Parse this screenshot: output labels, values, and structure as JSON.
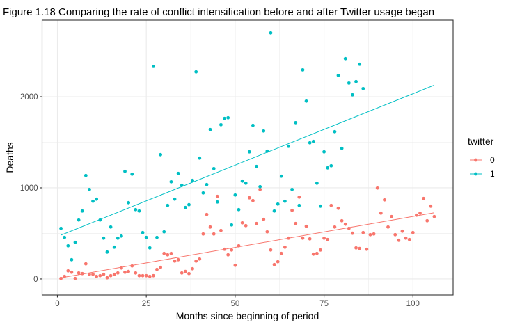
{
  "chart_data": {
    "type": "scatter",
    "title": "Figure 1.18 Comparing the rate of conflict intensification  before and after Twitter usage began",
    "xlabel": "Months since beginning of period",
    "ylabel": "Deaths",
    "xlim": [
      -4.3,
      111.3
    ],
    "ylim": [
      -176,
      2840
    ],
    "xticks": [
      0,
      25,
      50,
      75,
      100
    ],
    "xtick_labels": [
      "0",
      "25",
      "50",
      "75",
      "100"
    ],
    "yticks": [
      0,
      1000,
      2000
    ],
    "ytick_labels": [
      "0",
      "1000",
      "2000"
    ],
    "x_minor_gridlines": [
      12.5,
      37.5,
      62.5,
      87.5
    ],
    "y_minor_gridlines": [
      500,
      1500,
      2500
    ],
    "grid": true,
    "legend": {
      "title": "twitter",
      "position": "right"
    },
    "series": [
      {
        "name": "0",
        "color": "#F8766D",
        "points": [
          [
            1,
            5
          ],
          [
            2,
            28
          ],
          [
            3,
            89
          ],
          [
            4,
            74
          ],
          [
            5,
            5
          ],
          [
            6,
            66
          ],
          [
            7,
            59
          ],
          [
            8,
            166
          ],
          [
            9,
            51
          ],
          [
            10,
            51
          ],
          [
            11,
            28
          ],
          [
            12,
            36
          ],
          [
            13,
            51
          ],
          [
            14,
            13
          ],
          [
            15,
            36
          ],
          [
            16,
            51
          ],
          [
            17,
            66
          ],
          [
            18,
            120
          ],
          [
            19,
            74
          ],
          [
            20,
            82
          ],
          [
            21,
            143
          ],
          [
            22,
            66
          ],
          [
            23,
            36
          ],
          [
            24,
            36
          ],
          [
            25,
            36
          ],
          [
            26,
            28
          ],
          [
            27,
            36
          ],
          [
            28,
            104
          ],
          [
            29,
            127
          ],
          [
            30,
            280
          ],
          [
            31,
            265
          ],
          [
            32,
            280
          ],
          [
            33,
            196
          ],
          [
            34,
            211
          ],
          [
            35,
            66
          ],
          [
            36,
            82
          ],
          [
            37,
            59
          ],
          [
            38,
            112
          ],
          [
            39,
            196
          ],
          [
            40,
            219
          ],
          [
            41,
            494
          ],
          [
            42,
            708
          ],
          [
            43,
            570
          ],
          [
            44,
            494
          ],
          [
            45,
            906
          ],
          [
            46,
            532
          ],
          [
            47,
            326
          ],
          [
            48,
            265
          ],
          [
            49,
            318
          ],
          [
            50,
            150
          ],
          [
            51,
            364
          ],
          [
            52,
            616
          ],
          [
            53,
            585
          ],
          [
            54,
            891
          ],
          [
            55,
            860
          ],
          [
            56,
            608
          ],
          [
            57,
            982
          ],
          [
            58,
            654
          ],
          [
            59,
            517
          ],
          [
            60,
            318
          ],
          [
            61,
            158
          ],
          [
            62,
            189
          ],
          [
            63,
            280
          ],
          [
            64,
            349
          ],
          [
            65,
            448
          ],
          [
            66,
            753
          ],
          [
            67,
            608
          ],
          [
            68,
            898
          ],
          [
            69,
            448
          ],
          [
            70,
            578
          ],
          [
            71,
            440
          ],
          [
            72,
            272
          ],
          [
            73,
            280
          ],
          [
            74,
            318
          ],
          [
            75,
            448
          ],
          [
            76,
            433
          ],
          [
            77,
            807
          ],
          [
            78,
            570
          ],
          [
            79,
            776
          ],
          [
            80,
            639
          ],
          [
            81,
            601
          ],
          [
            82,
            555
          ],
          [
            83,
            502
          ],
          [
            84,
            341
          ],
          [
            85,
            334
          ],
          [
            86,
            509
          ],
          [
            87,
            326
          ],
          [
            88,
            486
          ],
          [
            89,
            494
          ],
          [
            90,
            998
          ],
          [
            91,
            723
          ],
          [
            92,
            868
          ],
          [
            93,
            570
          ],
          [
            94,
            685
          ],
          [
            95,
            486
          ],
          [
            96,
            425
          ],
          [
            97,
            524
          ],
          [
            98,
            448
          ],
          [
            99,
            433
          ],
          [
            100,
            509
          ],
          [
            101,
            700
          ],
          [
            102,
            723
          ],
          [
            103,
            883
          ],
          [
            104,
            639
          ],
          [
            105,
            799
          ],
          [
            106,
            685
          ]
        ],
        "trend": [
          [
            1,
            13
          ],
          [
            106,
            727
          ]
        ]
      },
      {
        "name": "1",
        "color": "#00BFC4",
        "points": [
          [
            1,
            555
          ],
          [
            2,
            456
          ],
          [
            3,
            364
          ],
          [
            4,
            211
          ],
          [
            5,
            402
          ],
          [
            6,
            647
          ],
          [
            7,
            746
          ],
          [
            8,
            1135
          ],
          [
            9,
            982
          ],
          [
            10,
            853
          ],
          [
            11,
            876
          ],
          [
            12,
            647
          ],
          [
            13,
            448
          ],
          [
            14,
            295
          ],
          [
            15,
            570
          ],
          [
            16,
            349
          ],
          [
            17,
            448
          ],
          [
            18,
            471
          ],
          [
            19,
            1181
          ],
          [
            20,
            837
          ],
          [
            21,
            1150
          ],
          [
            22,
            761
          ],
          [
            23,
            746
          ],
          [
            24,
            509
          ],
          [
            25,
            456
          ],
          [
            26,
            341
          ],
          [
            27,
            2333
          ],
          [
            28,
            456
          ],
          [
            29,
            1364
          ],
          [
            30,
            517
          ],
          [
            31,
            807
          ],
          [
            32,
            1066
          ],
          [
            33,
            876
          ],
          [
            34,
            1158
          ],
          [
            35,
            1028
          ],
          [
            36,
            784
          ],
          [
            37,
            815
          ],
          [
            38,
            1082
          ],
          [
            39,
            2273
          ],
          [
            40,
            1326
          ],
          [
            41,
            944
          ],
          [
            42,
            1036
          ],
          [
            43,
            1639
          ],
          [
            44,
            1211
          ],
          [
            45,
            845
          ],
          [
            46,
            1692
          ],
          [
            47,
            1761
          ],
          [
            48,
            1769
          ],
          [
            49,
            593
          ],
          [
            50,
            921
          ],
          [
            51,
            761
          ],
          [
            52,
            1074
          ],
          [
            53,
            1051
          ],
          [
            54,
            1395
          ],
          [
            55,
            1685
          ],
          [
            56,
            1234
          ],
          [
            57,
            1013
          ],
          [
            58,
            1624
          ],
          [
            59,
            1402
          ],
          [
            60,
            2700
          ],
          [
            61,
            746
          ],
          [
            62,
            822
          ],
          [
            63,
            1128
          ],
          [
            64,
            853
          ],
          [
            65,
            1456
          ],
          [
            66,
            982
          ],
          [
            67,
            1715
          ],
          [
            68,
            807
          ],
          [
            69,
            2295
          ],
          [
            70,
            1952
          ],
          [
            71,
            1494
          ],
          [
            72,
            1509
          ],
          [
            73,
            1051
          ],
          [
            74,
            799
          ],
          [
            75,
            1395
          ],
          [
            76,
            1219
          ],
          [
            77,
            1242
          ],
          [
            78,
            1616
          ],
          [
            79,
            2234
          ],
          [
            80,
            1433
          ],
          [
            81,
            2418
          ],
          [
            82,
            2150
          ],
          [
            83,
            2021
          ],
          [
            84,
            2166
          ],
          [
            85,
            2357
          ],
          [
            86,
            2089
          ]
        ],
        "trend": [
          [
            1,
            481
          ],
          [
            106,
            2127
          ]
        ]
      }
    ]
  }
}
